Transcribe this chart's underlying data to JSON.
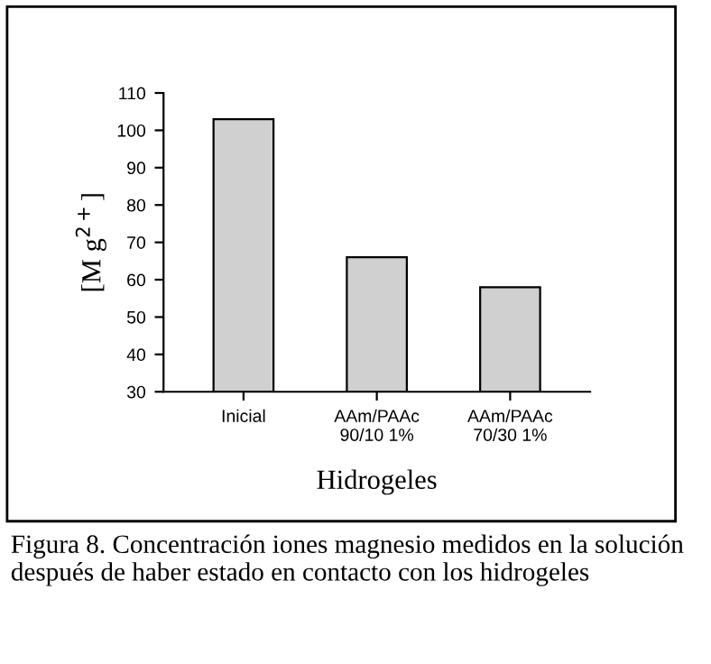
{
  "chart_data": {
    "type": "bar",
    "categories": [
      "Inicial",
      "AAm/PAAc\n90/10 1%",
      "AAm/PAAc\n70/30 1%"
    ],
    "values": [
      103,
      66,
      58
    ],
    "color": "#d0d0d0",
    "ylabel": "[M g$^{2+}$]",
    "xlabel": "Hidrogeles",
    "ylim": [
      30,
      110
    ],
    "yticks": [
      30,
      40,
      50,
      60,
      70,
      80,
      90,
      100,
      110
    ],
    "grid": false,
    "legend": false,
    "annotations": [
      "Figura 8. Concentración iones magnesio medidos en la solución después de haber estado en contacto con los hidrogeles"
    ]
  }
}
